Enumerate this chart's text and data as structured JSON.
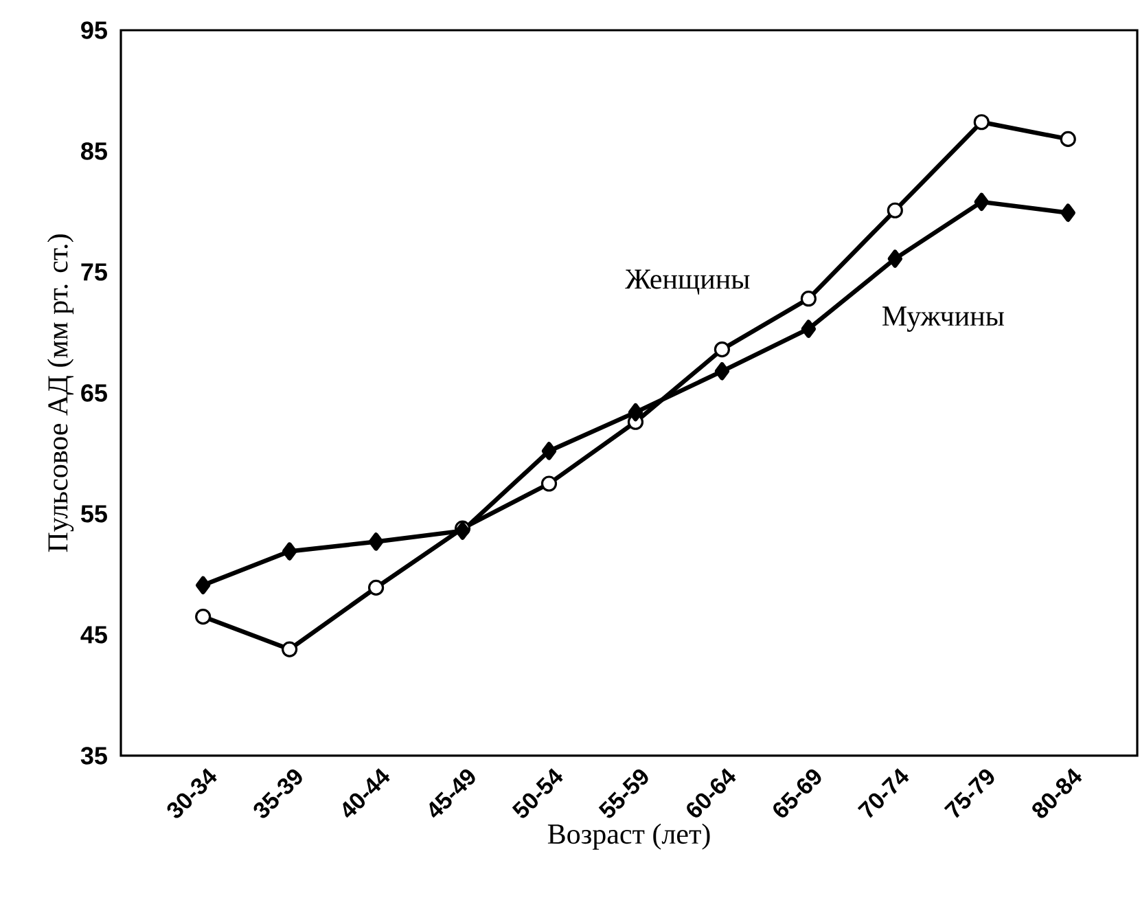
{
  "chart_data": {
    "type": "line",
    "xlabel": "Возраст  (лет)",
    "ylabel": "Пульсовое АД (мм рт. ст.)",
    "categories": [
      "30-34",
      "35-39",
      "40-44",
      "45-49",
      "50-54",
      "55-59",
      "60-64",
      "65-69",
      "70-74",
      "75-79",
      "80-84"
    ],
    "ylim": [
      35,
      95
    ],
    "yticks": [
      35,
      45,
      55,
      65,
      75,
      85,
      95
    ],
    "grid": false,
    "series": [
      {
        "name": "Женщины",
        "color": "#000000",
        "marker": "circle",
        "values": [
          46.5,
          43.8,
          48.9,
          53.8,
          57.5,
          62.6,
          68.6,
          72.8,
          80.1,
          87.4,
          86.0
        ]
      },
      {
        "name": "Мужчины",
        "color": "#000000",
        "marker": "diamond",
        "values": [
          49.1,
          51.9,
          52.7,
          53.6,
          60.2,
          63.4,
          66.8,
          70.3,
          76.1,
          80.8,
          79.9
        ]
      }
    ]
  }
}
